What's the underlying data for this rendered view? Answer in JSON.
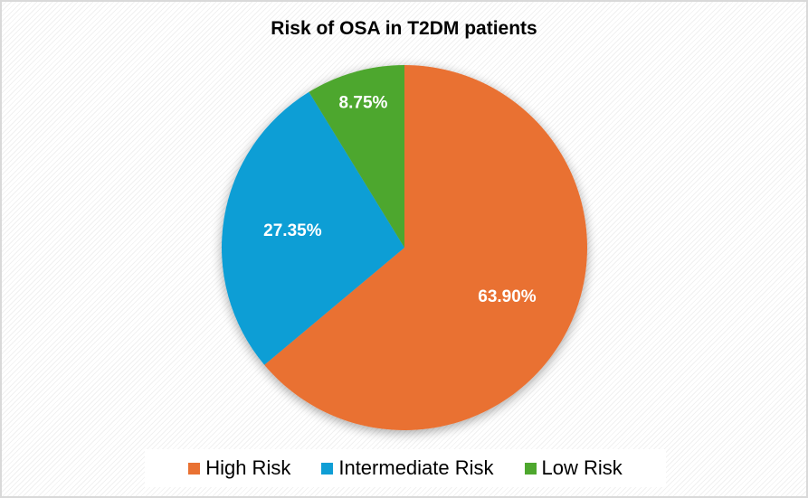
{
  "chart_data": {
    "type": "pie",
    "title": "Risk of OSA in T2DM patients",
    "slices": [
      {
        "label": "High Risk",
        "value": 63.9,
        "data_label": "63.90%",
        "color": "#E97132"
      },
      {
        "label": "Intermediate Risk",
        "value": 27.35,
        "data_label": "27.35%",
        "color": "#0F9ED5"
      },
      {
        "label": "Low Risk",
        "value": 8.75,
        "data_label": "8.75%",
        "color": "#4EA72E"
      }
    ],
    "start_angle": "12 o'clock, clockwise",
    "legend_position": "bottom"
  }
}
